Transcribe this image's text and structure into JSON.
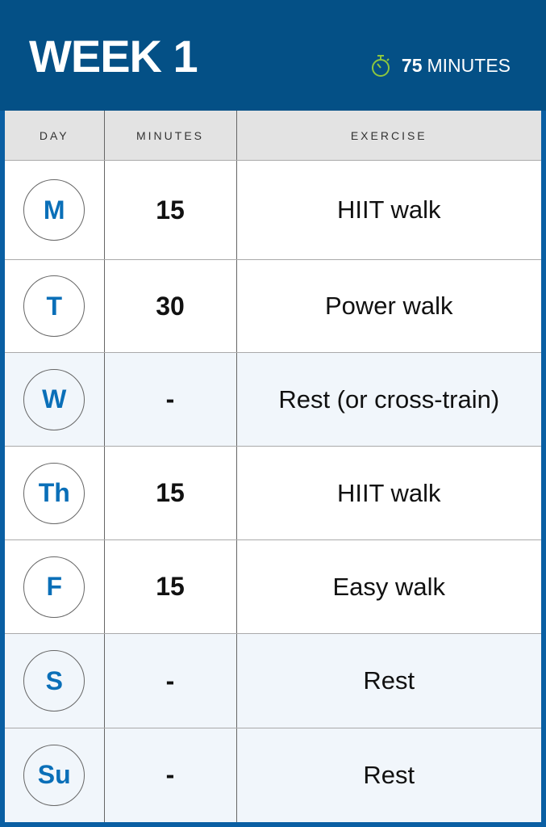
{
  "header": {
    "title": "WEEK 1",
    "total_value": "75",
    "total_unit": "MINUTES",
    "icon": "stopwatch-icon",
    "accent": "#8cc63f"
  },
  "table": {
    "columns": [
      "DAY",
      "MINUTES",
      "EXERCISE"
    ],
    "rows": [
      {
        "day": "M",
        "minutes": "15",
        "exercise": "HIIT walk"
      },
      {
        "day": "T",
        "minutes": "30",
        "exercise": "Power walk"
      },
      {
        "day": "W",
        "minutes": "-",
        "exercise": "Rest (or cross-train)"
      },
      {
        "day": "Th",
        "minutes": "15",
        "exercise": "HIIT walk"
      },
      {
        "day": "F",
        "minutes": "15",
        "exercise": "Easy walk"
      },
      {
        "day": "S",
        "minutes": "-",
        "exercise": "Rest"
      },
      {
        "day": "Su",
        "minutes": "-",
        "exercise": "Rest"
      }
    ]
  }
}
